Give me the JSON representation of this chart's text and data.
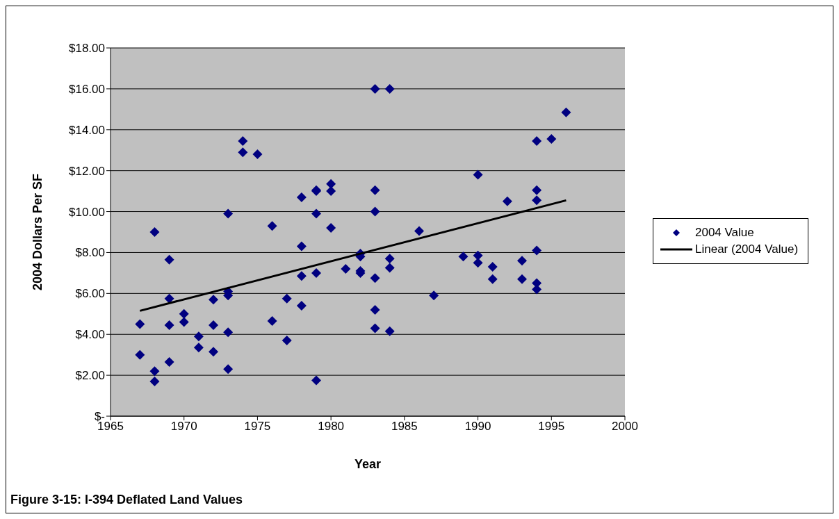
{
  "chart_data": {
    "type": "scatter",
    "title": "Figure 3-15: I-394 Deflated Land Values",
    "xlabel": "Year",
    "ylabel": "2004 Dollars Per SF",
    "xlim": [
      1965,
      2000
    ],
    "xticks": [
      1965,
      1970,
      1975,
      1980,
      1985,
      1990,
      1995,
      2000
    ],
    "ylim": [
      0,
      18
    ],
    "yticks": [
      {
        "value": 0,
        "label": "$-"
      },
      {
        "value": 2,
        "label": "$2.00"
      },
      {
        "value": 4,
        "label": "$4.00"
      },
      {
        "value": 6,
        "label": "$6.00"
      },
      {
        "value": 8,
        "label": "$8.00"
      },
      {
        "value": 10,
        "label": "$10.00"
      },
      {
        "value": 12,
        "label": "$12.00"
      },
      {
        "value": 14,
        "label": "$14.00"
      },
      {
        "value": 16,
        "label": "$16.00"
      },
      {
        "value": 18,
        "label": "$18.00"
      }
    ],
    "grid": "y",
    "legend": "right",
    "series": [
      {
        "name": "2004 Value",
        "color": "#000080",
        "marker": "diamond",
        "x": [
          1967,
          1967,
          1968,
          1968,
          1968,
          1969,
          1969,
          1969,
          1969,
          1970,
          1970,
          1971,
          1971,
          1972,
          1972,
          1972,
          1973,
          1973,
          1973,
          1973,
          1973,
          1974,
          1974,
          1975,
          1976,
          1976,
          1977,
          1977,
          1978,
          1978,
          1978,
          1978,
          1979,
          1979,
          1979,
          1979,
          1979,
          1980,
          1980,
          1980,
          1981,
          1982,
          1982,
          1982,
          1982,
          1983,
          1983,
          1983,
          1983,
          1983,
          1983,
          1984,
          1984,
          1984,
          1984,
          1986,
          1987,
          1989,
          1990,
          1990,
          1990,
          1991,
          1991,
          1992,
          1993,
          1993,
          1994,
          1994,
          1994,
          1994,
          1994,
          1994,
          1995,
          1996
        ],
        "values": [
          4.5,
          3.0,
          9.0,
          2.2,
          1.7,
          7.65,
          5.75,
          4.45,
          2.65,
          5.0,
          4.6,
          3.9,
          3.35,
          5.7,
          4.45,
          3.15,
          9.9,
          6.1,
          5.9,
          4.1,
          2.3,
          13.45,
          12.9,
          12.8,
          9.3,
          4.65,
          5.75,
          3.7,
          10.7,
          8.3,
          6.85,
          5.4,
          11.05,
          11.0,
          9.9,
          7.0,
          1.75,
          11.35,
          11.0,
          9.2,
          7.2,
          7.95,
          7.8,
          7.1,
          7.0,
          16.0,
          11.05,
          10.0,
          6.75,
          5.2,
          4.3,
          16.0,
          7.7,
          7.25,
          4.15,
          9.05,
          5.9,
          7.8,
          11.8,
          7.85,
          7.5,
          7.3,
          6.7,
          10.5,
          7.6,
          6.7,
          13.45,
          11.05,
          10.55,
          8.1,
          6.5,
          6.2,
          13.55,
          14.85
        ]
      },
      {
        "name": "Linear (2004 Value)",
        "type": "line",
        "marker": "none",
        "color": "#000000",
        "x": [
          1967,
          1996
        ],
        "values": [
          5.15,
          10.55
        ]
      }
    ]
  }
}
